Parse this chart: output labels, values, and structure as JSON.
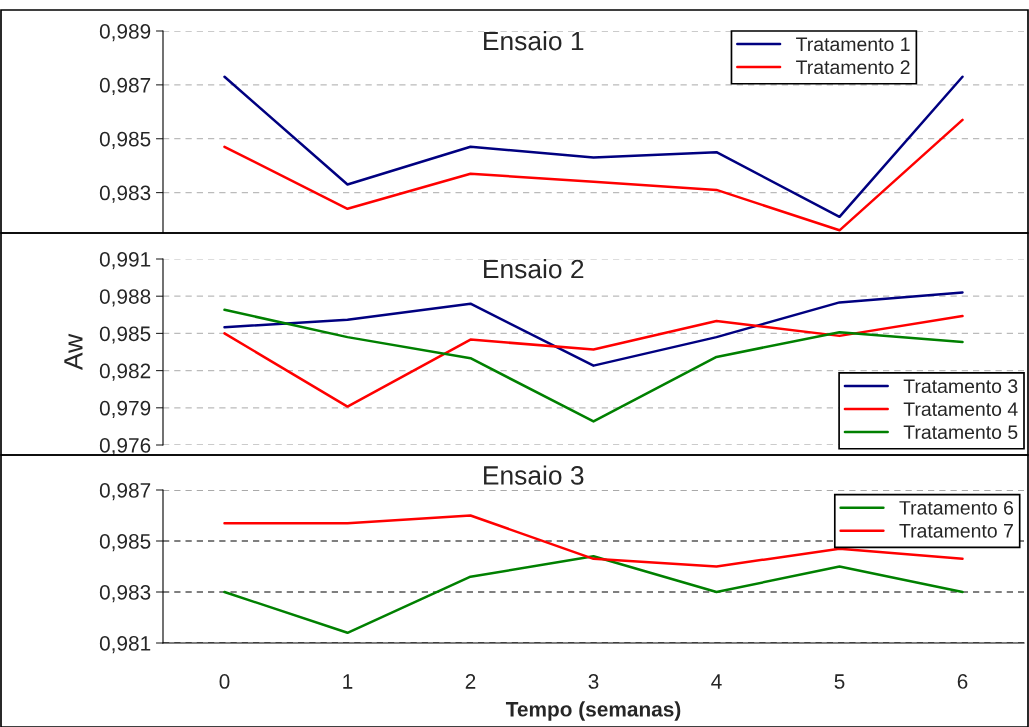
{
  "chart_data": [
    {
      "type": "line",
      "title": "Ensaio 1",
      "categories": [
        "0",
        "1",
        "2",
        "3",
        "4",
        "5",
        "6"
      ],
      "series": [
        {
          "name": "Tratamento 1",
          "color": "#000080",
          "values": [
            0.9873,
            0.9833,
            0.9847,
            0.9843,
            0.9845,
            0.9821,
            0.9873
          ]
        },
        {
          "name": "Tratamento 2",
          "color": "#ff0000",
          "values": [
            0.9847,
            0.9824,
            0.9837,
            0.9834,
            0.9831,
            0.9816,
            0.9857
          ]
        }
      ],
      "ylim": [
        0.9815,
        0.989
      ],
      "yticks": [
        {
          "value": 0.983,
          "label": "0,983"
        },
        {
          "value": 0.985,
          "label": "0,985"
        },
        {
          "value": 0.987,
          "label": "0,987"
        },
        {
          "value": 0.989,
          "label": "0,989"
        }
      ],
      "grid": "y",
      "legend": "top right",
      "tick_labels": "y"
    },
    {
      "type": "line",
      "title": "Ensaio 2",
      "ylabel": "Aw",
      "categories": [
        "0",
        "1",
        "2",
        "3",
        "4",
        "5",
        "6"
      ],
      "series": [
        {
          "name": "Tratamento 3",
          "color": "#000080",
          "values": [
            0.9855,
            0.9861,
            0.9874,
            0.9824,
            0.9847,
            0.9875,
            0.9883
          ]
        },
        {
          "name": "Tratamento 4",
          "color": "#ff0000",
          "values": [
            0.985,
            0.9791,
            0.9845,
            0.9837,
            0.986,
            0.9848,
            0.9864
          ]
        },
        {
          "name": "Tratamento 5",
          "color": "#008000",
          "values": [
            0.9869,
            0.9847,
            0.983,
            0.9779,
            0.9831,
            0.9851,
            0.9843
          ]
        }
      ],
      "ylim": [
        0.976,
        0.991
      ],
      "yticks": [
        {
          "value": 0.976,
          "label": "0,976"
        },
        {
          "value": 0.979,
          "label": "0,979"
        },
        {
          "value": 0.982,
          "label": "0,982"
        },
        {
          "value": 0.985,
          "label": "0,985"
        },
        {
          "value": 0.988,
          "label": "0,988"
        },
        {
          "value": 0.991,
          "label": "0,991"
        }
      ],
      "grid": "y",
      "legend": "bottom right",
      "tick_labels": "y"
    },
    {
      "type": "line",
      "title": "Ensaio 3",
      "xlabel": "Tempo (semanas)",
      "categories": [
        "0",
        "1",
        "2",
        "3",
        "4",
        "5",
        "6"
      ],
      "series": [
        {
          "name": "Tratamento 6",
          "color": "#008000",
          "values": [
            0.983,
            0.9814,
            0.9836,
            0.9844,
            0.983,
            0.984,
            0.983
          ]
        },
        {
          "name": "Tratamento 7",
          "color": "#ff0000",
          "values": [
            0.9857,
            0.9857,
            0.986,
            0.9843,
            0.984,
            0.9847,
            0.9843
          ]
        }
      ],
      "ylim": [
        0.981,
        0.987
      ],
      "yticks": [
        {
          "value": 0.981,
          "label": "0,981"
        },
        {
          "value": 0.983,
          "label": "0,983"
        },
        {
          "value": 0.985,
          "label": "0,985"
        },
        {
          "value": 0.987,
          "label": "0,987"
        }
      ],
      "grid": "y",
      "legend": "top right"
    }
  ]
}
